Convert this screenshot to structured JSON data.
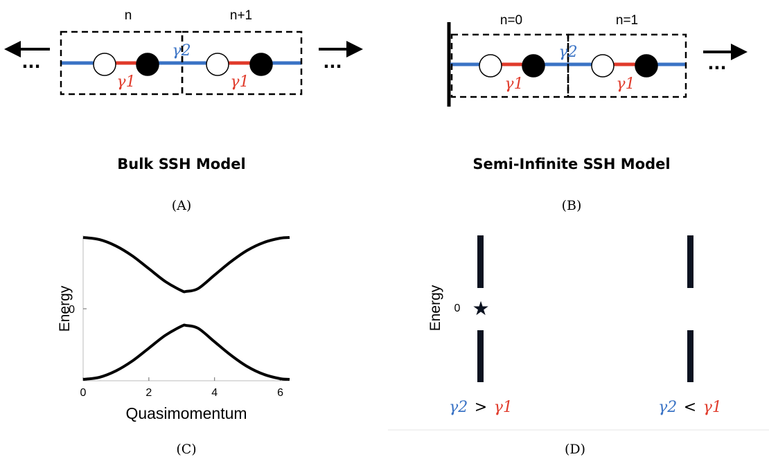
{
  "panel_a": {
    "cell_labels": [
      "n",
      "n+1"
    ],
    "gamma_intra": "γ1",
    "gamma_inter": "γ2",
    "ellipsis": "...",
    "title": "Bulk SSH Model",
    "caption": "(A)"
  },
  "panel_b": {
    "cell_labels": [
      "n=0",
      "n=1"
    ],
    "gamma_intra": "γ1",
    "gamma_inter": "γ2",
    "ellipsis": "...",
    "title": "Semi-Infinite SSH Model",
    "caption": "(B)"
  },
  "panel_c": {
    "ylabel": "Energy",
    "xlabel": "Quasimomentum",
    "zero_tick": "0",
    "caption": "(C)"
  },
  "panel_d": {
    "ylabel": "Energy",
    "zero_tick": "0",
    "star": "★",
    "left_label": {
      "a": "γ2",
      "op": ">",
      "b": "γ1"
    },
    "right_label": {
      "a": "γ2",
      "op": "<",
      "b": "γ1"
    },
    "caption": "(D)"
  },
  "colors": {
    "inter_hopping": "#3a73c5",
    "intra_hopping": "#e03a2a"
  },
  "chart_data": {
    "type": "line",
    "x_ticks": [
      0,
      2,
      4,
      6
    ],
    "xlim": [
      0,
      6.283
    ],
    "ylim": [
      -1.0,
      1.0
    ],
    "series": [
      {
        "x": [
          0,
          0.5,
          1.0,
          1.5,
          2.0,
          2.5,
          3.0,
          3.1416,
          3.5,
          4.0,
          4.5,
          5.0,
          5.5,
          6.0,
          6.283
        ],
        "values": [
          1.0,
          0.97,
          0.88,
          0.74,
          0.56,
          0.38,
          0.25,
          0.24,
          0.28,
          0.47,
          0.66,
          0.82,
          0.93,
          0.99,
          1.0
        ]
      },
      {
        "x": [
          0,
          0.5,
          1.0,
          1.5,
          2.0,
          2.5,
          3.0,
          3.1416,
          3.5,
          4.0,
          4.5,
          5.0,
          5.5,
          6.0,
          6.283
        ],
        "values": [
          -1.0,
          -0.97,
          -0.88,
          -0.74,
          -0.56,
          -0.38,
          -0.25,
          -0.24,
          -0.28,
          -0.47,
          -0.66,
          -0.82,
          -0.93,
          -0.99,
          -1.0
        ]
      }
    ]
  }
}
